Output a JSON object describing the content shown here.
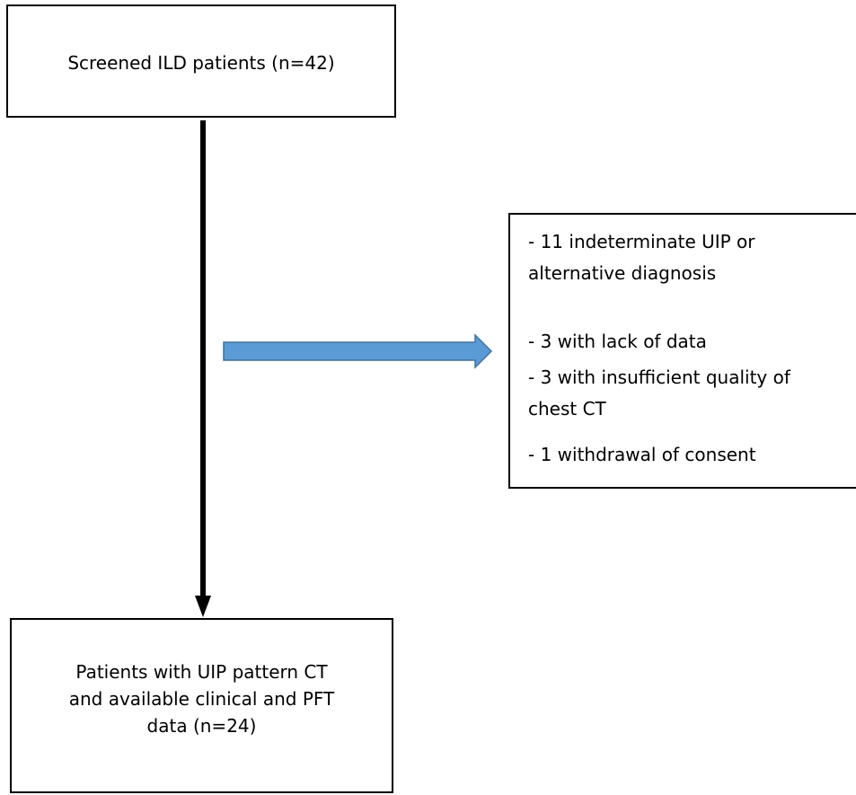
{
  "flow": {
    "top_box": {
      "text": "Screened ILD patients (n=42)"
    },
    "exclusion_box": {
      "lines": [
        "- 11 indeterminate UIP or",
        "alternative diagnosis",
        "- 3 with lack of data",
        "- 3 with insufficient quality of",
        "chest CT",
        "- 1 withdrawal of consent"
      ]
    },
    "bottom_box": {
      "lines": [
        "Patients with UIP pattern CT",
        "and available clinical and PFT",
        "data (n=24)"
      ]
    }
  },
  "colors": {
    "arrow_main": "#000000",
    "arrow_exclusion_fill": "#5b9bd5",
    "arrow_exclusion_stroke": "#41719c"
  }
}
